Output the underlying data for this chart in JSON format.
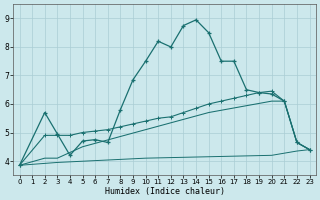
{
  "xlabel": "Humidex (Indice chaleur)",
  "bg_color": "#cce8ec",
  "grid_color": "#aacdd4",
  "line_color": "#1a7070",
  "xlim": [
    -0.5,
    23.5
  ],
  "ylim": [
    3.5,
    9.5
  ],
  "yticks": [
    4,
    5,
    6,
    7,
    8,
    9
  ],
  "xticks": [
    0,
    1,
    2,
    3,
    4,
    5,
    6,
    7,
    8,
    9,
    10,
    11,
    12,
    13,
    14,
    15,
    16,
    17,
    18,
    19,
    20,
    21,
    22,
    23
  ],
  "s1_x": [
    0,
    2,
    3,
    4,
    5,
    6,
    7,
    8,
    9,
    10,
    11,
    12,
    13,
    14,
    15,
    16,
    17,
    18,
    19,
    20,
    21,
    22,
    23
  ],
  "s1_y": [
    3.85,
    5.7,
    4.95,
    4.2,
    4.7,
    4.75,
    4.65,
    5.8,
    6.85,
    7.5,
    8.2,
    8.0,
    8.75,
    8.95,
    8.5,
    7.5,
    7.5,
    6.5,
    6.4,
    6.35,
    6.1,
    4.65,
    4.4
  ],
  "s2_x": [
    0,
    2,
    3,
    4,
    5,
    6,
    7,
    8,
    9,
    10,
    11,
    12,
    13,
    14,
    15,
    16,
    17,
    18,
    19,
    20,
    21,
    22,
    23
  ],
  "s2_y": [
    3.85,
    4.9,
    4.9,
    4.9,
    5.0,
    5.05,
    5.1,
    5.2,
    5.3,
    5.4,
    5.5,
    5.55,
    5.7,
    5.85,
    6.0,
    6.1,
    6.2,
    6.3,
    6.4,
    6.45,
    6.1,
    4.65,
    4.4
  ],
  "s3_x": [
    0,
    2,
    3,
    5,
    10,
    15,
    20,
    21,
    22,
    23
  ],
  "s3_y": [
    3.85,
    4.1,
    4.1,
    4.5,
    5.1,
    5.7,
    6.1,
    6.1,
    4.65,
    4.4
  ],
  "s4_x": [
    0,
    3,
    10,
    20,
    22,
    23
  ],
  "s4_y": [
    3.85,
    3.95,
    4.1,
    4.2,
    4.35,
    4.4
  ]
}
